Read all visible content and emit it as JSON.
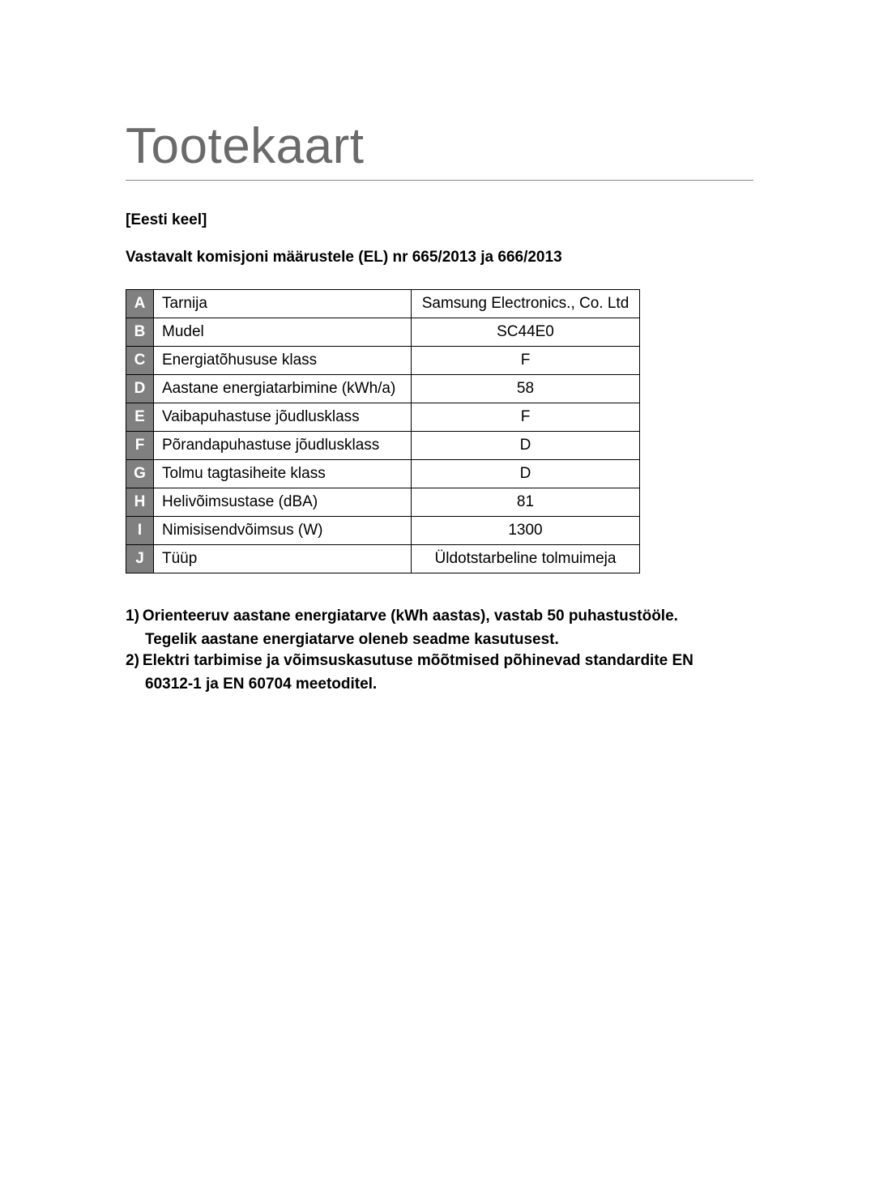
{
  "page": {
    "title": "Tootekaart",
    "subtitle1": "[Eesti keel]",
    "subtitle2": "Vastavalt komisjoni määrustele (EL) nr 665/2013 ja 666/2013"
  },
  "spec_table": {
    "rows": [
      {
        "letter": "A",
        "label": "Tarnija",
        "value": "Samsung Electronics., Co. Ltd"
      },
      {
        "letter": "B",
        "label": "Mudel",
        "value": "SC44E0"
      },
      {
        "letter": "C",
        "label": "Energiatõhususe klass",
        "value": "F"
      },
      {
        "letter": "D",
        "label": "Aastane energiatarbimine (kWh/a)",
        "value": "58"
      },
      {
        "letter": "E",
        "label": "Vaibapuhastuse jõudlusklass",
        "value": "F"
      },
      {
        "letter": "F",
        "label": "Põrandapuhastuse jõudlusklass",
        "value": "D"
      },
      {
        "letter": "G",
        "label": "Tolmu tagtasiheite klass",
        "value": "D"
      },
      {
        "letter": "H",
        "label": "Helivõimsustase (dBA)",
        "value": "81"
      },
      {
        "letter": "I",
        "label": "Nimisisendvõimsus (W)",
        "value": "1300"
      },
      {
        "letter": "J",
        "label": "Tüüp",
        "value": "Üldotstarbeline tolmuimeja"
      }
    ],
    "colors": {
      "letter_bg": "#808080",
      "letter_fg": "#ffffff",
      "border": "#000000",
      "text": "#000000"
    }
  },
  "notes": {
    "items": [
      {
        "num": "1)",
        "line1": "Orienteeruv aastane energiatarve (kWh aastas), vastab 50 puhastustööle.",
        "line2": "Tegelik aastane energiatarve oleneb seadme kasutusest."
      },
      {
        "num": "2)",
        "line1": "Elektri  tarbimise ja võimsuskasutuse mõõtmised põhinevad  standardite  EN",
        "line2": "60312-1 ja EN 60704 meetoditel."
      }
    ]
  }
}
